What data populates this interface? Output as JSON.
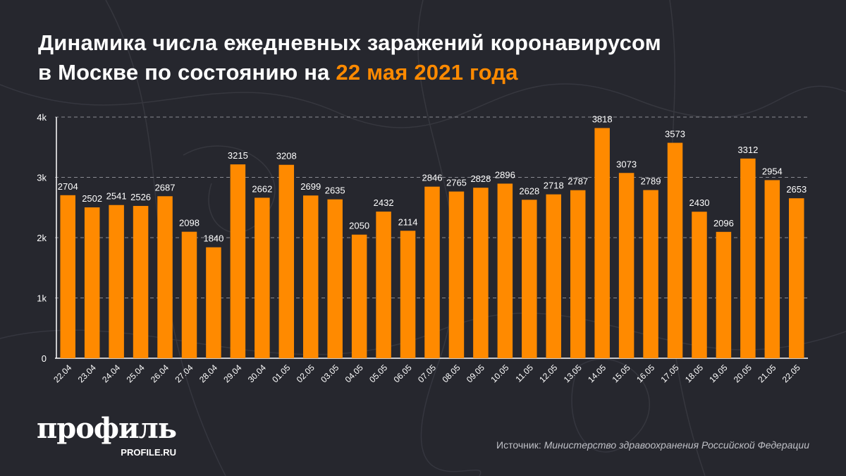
{
  "title": {
    "main": "Динамика числа ежедневных заражений коронавирусом",
    "line2": "в Москве по состоянию на ",
    "highlight": "22 мая 2021 года"
  },
  "colors": {
    "bar": "#ff8a00",
    "background": "#26272e",
    "highlight": "#ff8a00"
  },
  "chart_data": {
    "type": "bar",
    "categories": [
      "22.04",
      "23.04",
      "24.04",
      "25.04",
      "26.04",
      "27.04",
      "28.04",
      "29.04",
      "30.04",
      "01.05",
      "02.05",
      "03.05",
      "04.05",
      "05.05",
      "06.05",
      "07.05",
      "08.05",
      "09.05",
      "10.05",
      "11.05",
      "12.05",
      "13.05",
      "14.05",
      "15.05",
      "16.05",
      "17.05",
      "18.05",
      "19.05",
      "20.05",
      "21.05",
      "22.05"
    ],
    "values": [
      2704,
      2502,
      2541,
      2526,
      2687,
      2098,
      1840,
      3215,
      2662,
      3208,
      2699,
      2635,
      2050,
      2432,
      2114,
      2846,
      2765,
      2828,
      2896,
      2628,
      2718,
      2787,
      3818,
      3073,
      2789,
      3573,
      2430,
      2096,
      3312,
      2954,
      2653
    ],
    "ylim": [
      0,
      4000
    ],
    "yticks": [
      0,
      1000,
      2000,
      3000,
      4000
    ],
    "ytick_labels": [
      "0",
      "1k",
      "2k",
      "3k",
      "4k"
    ],
    "grid": true,
    "data_labels": true
  },
  "logo": {
    "word": "профиль",
    "site": "PROFILE.RU"
  },
  "source": {
    "prefix": "Источник: ",
    "body": "Министерство здравоохранения Российской Федерации"
  }
}
